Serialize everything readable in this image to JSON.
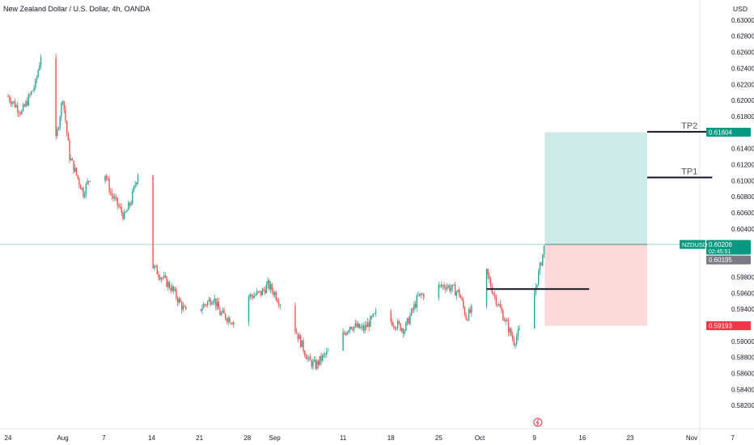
{
  "header": {
    "title": "New Zealand Dollar / U.S. Dollar, 4h, OANDA",
    "currency": "USD"
  },
  "chart_data": {
    "type": "candlestick",
    "ylim": [
      0.5795,
      0.6315
    ],
    "y_ticks": [
      "0.63000",
      "0.62800",
      "0.62600",
      "0.62400",
      "0.62200",
      "0.62000",
      "0.61800",
      "0.61400",
      "0.61200",
      "0.61000",
      "0.60800",
      "0.60600",
      "0.60400",
      "0.59800",
      "0.59600",
      "0.59400",
      "0.59000",
      "0.58800",
      "0.58600",
      "0.58400",
      "0.58200"
    ],
    "y_tick_values": [
      0.63,
      0.628,
      0.626,
      0.624,
      0.622,
      0.62,
      0.618,
      0.614,
      0.612,
      0.61,
      0.608,
      0.606,
      0.604,
      0.598,
      0.596,
      0.594,
      0.59,
      0.588,
      0.586,
      0.584,
      0.582
    ],
    "x_ticks": [
      {
        "label": "24",
        "day": 0
      },
      {
        "label": "Aug",
        "day": 8
      },
      {
        "label": "7",
        "day": 14
      },
      {
        "label": "14",
        "day": 21
      },
      {
        "label": "21",
        "day": 28
      },
      {
        "label": "28",
        "day": 35
      },
      {
        "label": "Sep",
        "day": 39
      },
      {
        "label": "11",
        "day": 49
      },
      {
        "label": "18",
        "day": 56
      },
      {
        "label": "25",
        "day": 63
      },
      {
        "label": "Oct",
        "day": 69
      },
      {
        "label": "9",
        "day": 77
      },
      {
        "label": "16",
        "day": 84
      },
      {
        "label": "23",
        "day": 91
      },
      {
        "label": "Nov",
        "day": 100
      },
      {
        "label": "7",
        "day": 106
      }
    ],
    "price_path": [
      [
        0,
        0.6205
      ],
      [
        2,
        0.6185
      ],
      [
        4,
        0.622
      ],
      [
        5,
        0.6265
      ],
      [
        6,
        0.62
      ],
      [
        7,
        0.615
      ],
      [
        8,
        0.6205
      ],
      [
        9,
        0.613
      ],
      [
        11,
        0.6085
      ],
      [
        12,
        0.6105
      ],
      [
        13,
        0.6095
      ],
      [
        14,
        0.6115
      ],
      [
        15,
        0.6085
      ],
      [
        17,
        0.6055
      ],
      [
        18,
        0.6075
      ],
      [
        19,
        0.611
      ],
      [
        20,
        0.6045
      ],
      [
        21,
        0.5995
      ],
      [
        22,
        0.5985
      ],
      [
        24,
        0.5965
      ],
      [
        26,
        0.5935
      ],
      [
        28,
        0.594
      ],
      [
        30,
        0.5955
      ],
      [
        31,
        0.5935
      ],
      [
        33,
        0.5925
      ],
      [
        35,
        0.5955
      ],
      [
        37,
        0.596
      ],
      [
        38,
        0.597
      ],
      [
        39,
        0.596
      ],
      [
        40,
        0.5945
      ],
      [
        42,
        0.5915
      ],
      [
        44,
        0.5875
      ],
      [
        45,
        0.587
      ],
      [
        46,
        0.588
      ],
      [
        48,
        0.5895
      ],
      [
        50,
        0.592
      ],
      [
        52,
        0.5915
      ],
      [
        54,
        0.5935
      ],
      [
        56,
        0.5925
      ],
      [
        58,
        0.5915
      ],
      [
        60,
        0.5955
      ],
      [
        62,
        0.5965
      ],
      [
        64,
        0.597
      ],
      [
        66,
        0.596
      ],
      [
        67,
        0.593
      ],
      [
        68,
        0.594
      ],
      [
        69,
        0.603
      ],
      [
        70,
        0.5985
      ],
      [
        71,
        0.596
      ],
      [
        73,
        0.592
      ],
      [
        74,
        0.59
      ],
      [
        75,
        0.5915
      ],
      [
        76,
        0.5945
      ],
      [
        77,
        0.596
      ],
      [
        78,
        0.6
      ],
      [
        78.5,
        0.6021
      ]
    ],
    "candle_volatility": 0.0009,
    "colors": {
      "up": "#26a69a",
      "down": "#ef5350",
      "price_line": "#26a69a"
    },
    "position": {
      "type": "long",
      "entry": 0.60206,
      "target": 0.61604,
      "stop": 0.59193,
      "start_day": 78.5,
      "end_day": 93.5,
      "profit_color": "#26a69a",
      "loss_color": "#ef5350"
    },
    "levels": [
      {
        "label": "TP2",
        "price": 0.6161,
        "start_day": 93.5,
        "end_day": 103
      },
      {
        "label": "TP1",
        "price": 0.6104,
        "start_day": 93.5,
        "end_day": 103
      },
      {
        "label": "",
        "price": 0.5965,
        "start_day": 70,
        "end_day": 85
      }
    ],
    "price_labels": [
      {
        "text": "0.61604",
        "price": 0.61604,
        "color": "#089981"
      },
      {
        "text": "0.60206",
        "price": 0.60206,
        "color": "#089981",
        "symbol": "NZDUSD",
        "countdown": "02:45:51"
      },
      {
        "text": "0.60195",
        "price": 0.60195,
        "color": "#787b86",
        "offset": 18
      },
      {
        "text": "0.59193",
        "price": 0.59193,
        "color": "#f23645"
      }
    ]
  }
}
